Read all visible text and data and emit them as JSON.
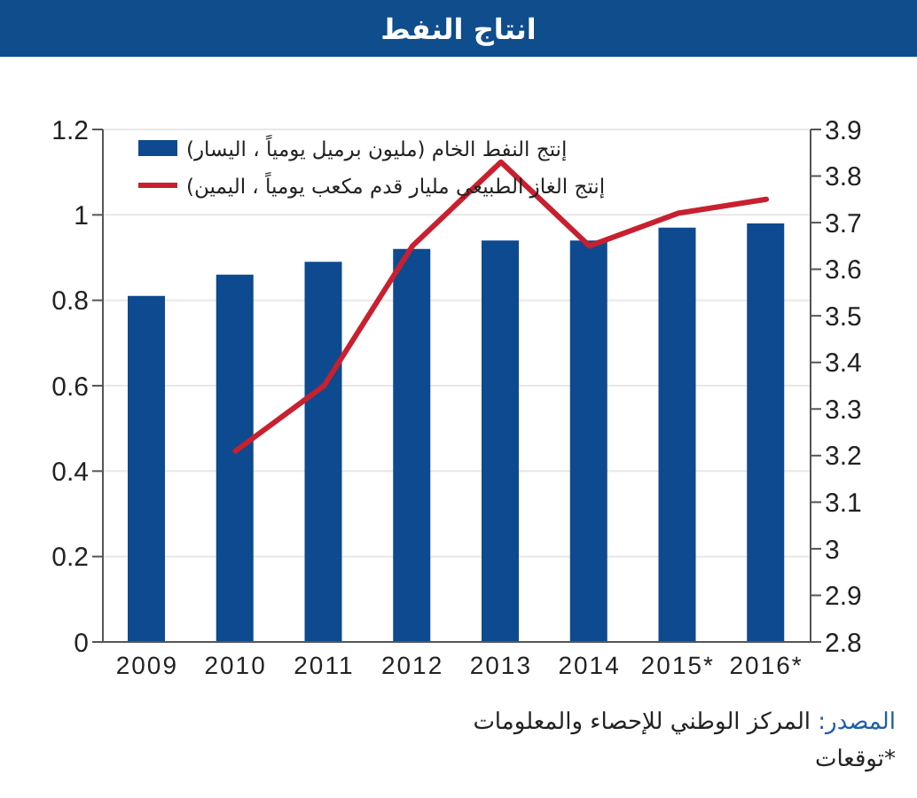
{
  "chart_data": {
    "type": "bar",
    "title": "انتاج النفط",
    "categories": [
      "2009",
      "2010",
      "2011",
      "2012",
      "2013",
      "2014",
      "2015*",
      "2016*"
    ],
    "series": [
      {
        "name": "إنتج النفط الخام (مليون برميل يومياً ، اليسار)",
        "color": "#0d4a8f",
        "values": [
          0.81,
          0.86,
          0.89,
          0.92,
          0.94,
          0.94,
          0.97,
          0.98
        ]
      },
      {
        "name": "إنتج الغاز الطبيعي مليار قدم مكعب يومياً ، اليمين)",
        "type": "line",
        "axis": "y2",
        "color": "#c8202f",
        "values": [
          null,
          3.21,
          3.35,
          3.65,
          3.83,
          3.65,
          3.72,
          3.75
        ]
      }
    ],
    "ylim": [
      0,
      1.2
    ],
    "yticks": [
      0,
      0.2,
      0.4,
      0.6,
      0.8,
      1,
      1.2
    ],
    "y2lim": [
      2.8,
      3.9
    ],
    "y2ticks": [
      2.8,
      2.9,
      3,
      3.1,
      3.2,
      3.3,
      3.4,
      3.5,
      3.6,
      3.7,
      3.8,
      3.9
    ],
    "grid": "y",
    "legend": "top left",
    "annotations": [
      "المصدر: المركز الوطني للإحصاء والمعلومات",
      "*توقعات"
    ]
  }
}
